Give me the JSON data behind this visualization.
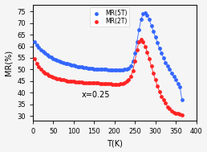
{
  "title": "",
  "xlabel": "T(K)",
  "ylabel": "MR(%)",
  "annotation": "x=0.25",
  "xlim": [
    0,
    400
  ],
  "ylim": [
    28,
    78
  ],
  "yticks": [
    30,
    35,
    40,
    45,
    50,
    55,
    60,
    65,
    70,
    75
  ],
  "xticks": [
    0,
    50,
    100,
    150,
    200,
    250,
    300,
    350,
    400
  ],
  "legend_labels": [
    "MR(5T)",
    "MR(2T)"
  ],
  "blue_color": "#3366FF",
  "red_color": "#FF2222",
  "mr5t": {
    "T": [
      5,
      10,
      15,
      20,
      25,
      30,
      35,
      40,
      45,
      50,
      55,
      60,
      65,
      70,
      75,
      80,
      85,
      90,
      95,
      100,
      105,
      110,
      115,
      120,
      125,
      130,
      135,
      140,
      145,
      150,
      155,
      160,
      165,
      170,
      175,
      180,
      185,
      190,
      195,
      200,
      205,
      210,
      215,
      220,
      225,
      230,
      235,
      240,
      245,
      250,
      255,
      260,
      265,
      270,
      275,
      280,
      285,
      290,
      295,
      300,
      305,
      310,
      315,
      320,
      325,
      330,
      335,
      340,
      345,
      350,
      355,
      360,
      365
    ],
    "MR": [
      62.0,
      60.5,
      59.5,
      58.5,
      57.8,
      57.0,
      56.3,
      55.8,
      55.3,
      54.8,
      54.4,
      54.0,
      53.6,
      53.3,
      53.0,
      52.7,
      52.4,
      52.1,
      51.9,
      51.7,
      51.5,
      51.3,
      51.1,
      51.0,
      50.8,
      50.7,
      50.6,
      50.5,
      50.4,
      50.3,
      50.3,
      50.2,
      50.1,
      50.1,
      50.0,
      50.0,
      49.9,
      49.9,
      49.8,
      49.8,
      49.8,
      49.8,
      49.8,
      49.9,
      50.0,
      50.2,
      50.5,
      51.5,
      53.5,
      57.0,
      62.0,
      67.0,
      71.5,
      74.0,
      74.5,
      73.5,
      71.5,
      69.0,
      66.5,
      64.0,
      61.5,
      59.0,
      57.0,
      55.0,
      53.0,
      51.5,
      50.0,
      48.5,
      47.0,
      45.5,
      44.0,
      42.5,
      37.0
    ]
  },
  "mr2t": {
    "T": [
      5,
      10,
      15,
      20,
      25,
      30,
      35,
      40,
      45,
      50,
      55,
      60,
      65,
      70,
      75,
      80,
      85,
      90,
      95,
      100,
      105,
      110,
      115,
      120,
      125,
      130,
      135,
      140,
      145,
      150,
      155,
      160,
      165,
      170,
      175,
      180,
      185,
      190,
      195,
      200,
      205,
      210,
      215,
      220,
      225,
      230,
      235,
      240,
      245,
      250,
      255,
      260,
      265,
      270,
      275,
      280,
      285,
      290,
      295,
      300,
      305,
      310,
      315,
      320,
      325,
      330,
      335,
      340,
      345,
      350,
      355,
      360,
      365
    ],
    "MR": [
      54.8,
      52.5,
      51.0,
      50.0,
      49.2,
      48.5,
      48.0,
      47.5,
      47.0,
      46.7,
      46.4,
      46.1,
      45.9,
      45.7,
      45.5,
      45.3,
      45.1,
      45.0,
      44.9,
      44.8,
      44.7,
      44.6,
      44.5,
      44.5,
      44.4,
      44.4,
      44.3,
      44.3,
      44.2,
      44.2,
      44.1,
      44.1,
      44.0,
      44.0,
      43.9,
      43.9,
      43.8,
      43.8,
      43.7,
      43.7,
      43.7,
      43.7,
      43.8,
      44.0,
      44.3,
      44.8,
      45.5,
      47.0,
      49.5,
      53.5,
      58.5,
      62.0,
      63.0,
      62.0,
      60.0,
      57.5,
      54.5,
      51.5,
      48.5,
      45.5,
      43.0,
      40.5,
      38.5,
      37.0,
      35.5,
      34.0,
      33.0,
      32.0,
      31.5,
      31.2,
      31.0,
      30.8,
      30.5
    ]
  }
}
